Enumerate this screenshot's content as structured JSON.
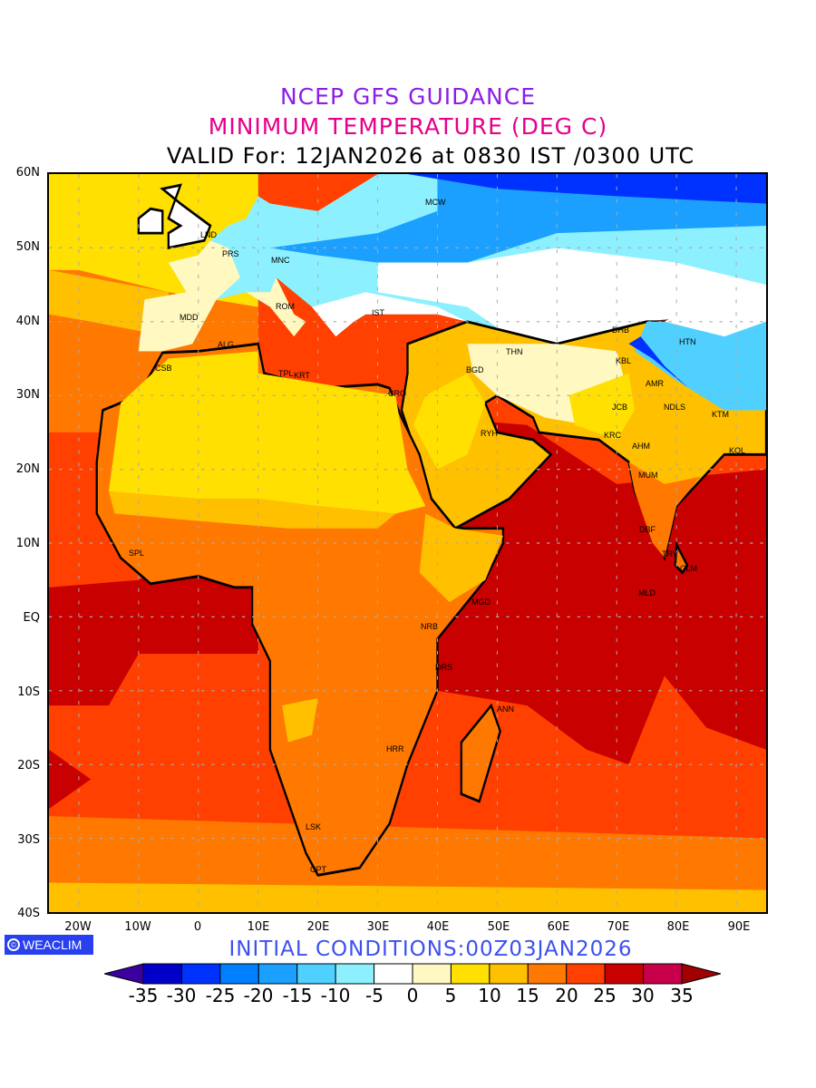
{
  "header": {
    "title": "NCEP GFS GUIDANCE",
    "subtitle": "MINIMUM TEMPERATURE (DEG C)",
    "valid": "VALID For: 12JAN2026 at 0830 IST /0300 UTC"
  },
  "axes": {
    "lat_labels": [
      "60N",
      "50N",
      "40N",
      "30N",
      "20N",
      "10N",
      "EQ",
      "10S",
      "20S",
      "30S",
      "40S"
    ],
    "lon_labels": [
      "20W",
      "10W",
      "0",
      "10E",
      "20E",
      "30E",
      "40E",
      "50E",
      "60E",
      "70E",
      "80E",
      "90E"
    ]
  },
  "cities": [
    "MCW",
    "LND",
    "PRS",
    "MNC",
    "ROM",
    "MDD",
    "IST",
    "ALG",
    "CSB",
    "TPL",
    "KRT",
    "CRO",
    "BGD",
    "THN",
    "DHB",
    "HTN",
    "KBL",
    "AMR",
    "JCB",
    "NDLS",
    "KTM",
    "RYH",
    "KRC",
    "AHM",
    "KOL",
    "MUM",
    "DBF",
    "TRV",
    "CLM",
    "MLD",
    "MGD",
    "NRB",
    "DRS",
    "ANN",
    "HRR",
    "LSK",
    "CPT",
    "SPL"
  ],
  "logo": {
    "symbol": "©",
    "text": "WEACLIM"
  },
  "footer": {
    "initial": "INITIAL  CONDITIONS:00Z03JAN2026"
  },
  "colorbar": {
    "labels": [
      "-35",
      "-30",
      "-25",
      "-20",
      "-15",
      "-10",
      "-5",
      "0",
      "5",
      "10",
      "15",
      "20",
      "25",
      "30",
      "35"
    ],
    "colors": [
      "#3c00a0",
      "#0000c8",
      "#0032ff",
      "#0080ff",
      "#1ca0ff",
      "#50d0ff",
      "#8cf0ff",
      "#ffffff",
      "#fff8c0",
      "#ffe000",
      "#ffc000",
      "#ff7800",
      "#ff4000",
      "#c80000",
      "#c8004c",
      "#a00000"
    ]
  }
}
